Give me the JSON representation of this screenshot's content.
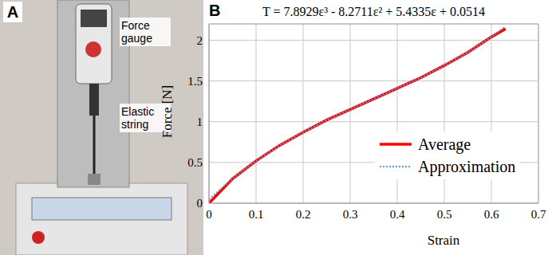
{
  "photo": {
    "label": "A",
    "labels": [
      "Force gauge",
      "Elastic string"
    ]
  },
  "chart_data": {
    "type": "line",
    "panel_label": "B",
    "annotation": "T = 7.8929ε³ - 8.2711ε² + 5.4335ε + 0.0514",
    "x_label": "Strain",
    "y_label": "Force [N]",
    "x": [
      0,
      0.05,
      0.1,
      0.15,
      0.2,
      0.25,
      0.3,
      0.35,
      0.4,
      0.45,
      0.5,
      0.55,
      0.6,
      0.63
    ],
    "series": [
      {
        "name": "Average",
        "color": "#ff0000",
        "line_style": "solid",
        "values": [
          0,
          0.3,
          0.52,
          0.71,
          0.87,
          1.02,
          1.15,
          1.28,
          1.41,
          1.54,
          1.69,
          1.85,
          2.04,
          2.14
        ]
      },
      {
        "name": "Approximation",
        "color": "#5b9bd5",
        "line_style": "dotted",
        "values": [
          0.05,
          0.3,
          0.52,
          0.71,
          0.87,
          1.02,
          1.15,
          1.28,
          1.41,
          1.54,
          1.69,
          1.85,
          2.04,
          2.17
        ]
      }
    ],
    "xlim": [
      0,
      0.7
    ],
    "xticks": [
      0,
      0.1,
      0.2,
      0.3,
      0.4,
      0.5,
      0.6,
      0.7
    ],
    "ylim": [
      0,
      2.2
    ],
    "yticks": [
      0,
      0.5,
      1,
      1.5,
      2
    ],
    "grid": true,
    "legend": "lower right",
    "marker": "none"
  }
}
